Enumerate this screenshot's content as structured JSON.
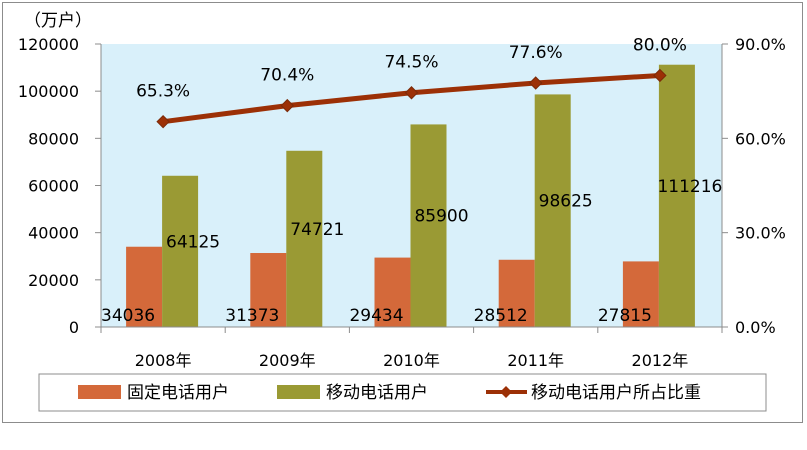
{
  "chart_data": {
    "type": "bar",
    "unit_label": "（万户）",
    "categories": [
      "2008年",
      "2009年",
      "2010年",
      "2011年",
      "2012年"
    ],
    "series": [
      {
        "name": "固定电话用户",
        "type": "bar",
        "axis": "left",
        "color": "#d4693a",
        "values": [
          34036,
          31373,
          29434,
          28512,
          27815
        ],
        "labels": [
          "34036",
          "31373",
          "29434",
          "28512",
          "27815"
        ]
      },
      {
        "name": "移动电话用户",
        "type": "bar",
        "axis": "left",
        "color": "#9a9a34",
        "values": [
          64125,
          74721,
          85900,
          98625,
          111216
        ],
        "labels": [
          "64125",
          "74721",
          "85900",
          "98625",
          "111216"
        ]
      },
      {
        "name": "移动电话用户所占比重",
        "type": "line",
        "axis": "right",
        "color": "#9c3006",
        "values": [
          65.3,
          70.4,
          74.5,
          77.6,
          80.0
        ],
        "labels": [
          "65.3%",
          "70.4%",
          "74.5%",
          "77.6%",
          "80.0%"
        ]
      }
    ],
    "ylim": [
      0,
      120000
    ],
    "yticks": [
      "0",
      "20000",
      "40000",
      "60000",
      "80000",
      "100000",
      "120000"
    ],
    "y2lim": [
      0,
      90
    ],
    "y2ticks": [
      "0.0%",
      "30.0%",
      "60.0%",
      "90.0%"
    ],
    "plot_background": "#d9f0fa",
    "grid": false,
    "legend_position": "bottom"
  }
}
